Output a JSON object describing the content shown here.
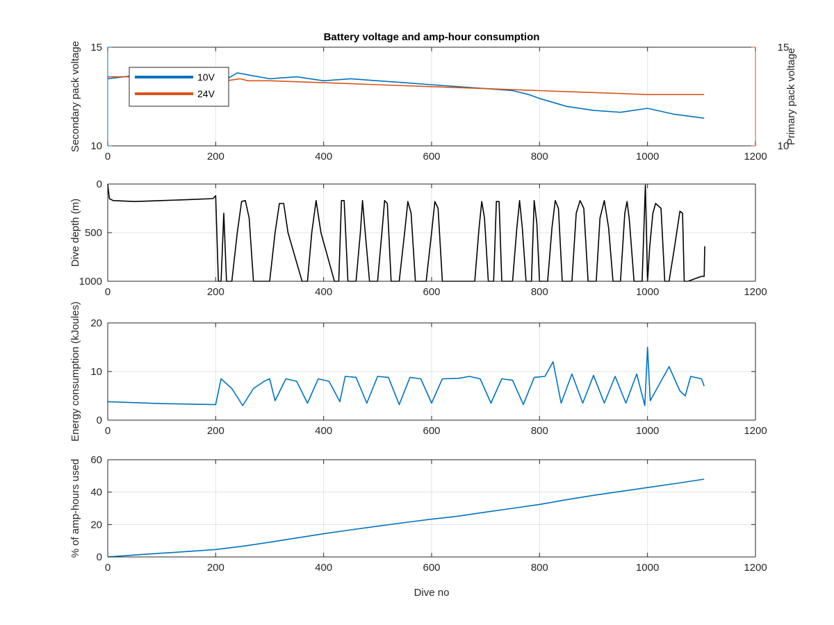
{
  "chart_data": [
    {
      "type": "line",
      "title": "Battery voltage and amp-hour consumption",
      "xlim": [
        0,
        1200
      ],
      "xticks": [
        0,
        200,
        400,
        600,
        800,
        1000,
        1200
      ],
      "ylim": [
        10,
        15
      ],
      "yticks": [
        10,
        15
      ],
      "ylabel": "Secondary pack voltage",
      "y2lim": [
        10,
        15
      ],
      "y2ticks": [
        10,
        15
      ],
      "y2label": "Primary pack voltage",
      "grid": true,
      "legend_position": "top-left",
      "colors": {
        "left_axis": "#0072BD",
        "right_axis": "#D95319"
      },
      "series": [
        {
          "name": "10V",
          "color": "#0072BD",
          "axis": "left",
          "x": [
            0,
            30,
            60,
            100,
            150,
            200,
            215,
            240,
            260,
            300,
            350,
            400,
            450,
            500,
            550,
            600,
            650,
            700,
            750,
            780,
            800,
            850,
            900,
            950,
            1000,
            1050,
            1105
          ],
          "y": [
            13.4,
            13.5,
            13.6,
            13.5,
            13.5,
            13.4,
            13.3,
            13.7,
            13.6,
            13.4,
            13.5,
            13.3,
            13.4,
            13.3,
            13.2,
            13.1,
            13.0,
            12.9,
            12.8,
            12.6,
            12.4,
            12.0,
            11.8,
            11.7,
            11.9,
            11.6,
            11.4
          ]
        },
        {
          "name": "24V",
          "color": "#D95319",
          "axis": "right",
          "x": [
            0,
            50,
            100,
            150,
            200,
            220,
            245,
            260,
            300,
            400,
            500,
            600,
            650,
            700,
            750,
            800,
            850,
            900,
            950,
            1000,
            1050,
            1105
          ],
          "y": [
            13.5,
            13.5,
            13.5,
            13.5,
            13.4,
            13.3,
            13.4,
            13.3,
            13.3,
            13.2,
            13.1,
            13.0,
            12.95,
            12.9,
            12.85,
            12.8,
            12.75,
            12.7,
            12.65,
            12.6,
            12.6,
            12.6
          ]
        }
      ]
    },
    {
      "type": "line",
      "xlim": [
        0,
        1200
      ],
      "xticks": [
        0,
        200,
        400,
        600,
        800,
        1000,
        1200
      ],
      "ylim": [
        0,
        1000
      ],
      "yticks": [
        0,
        500,
        1000
      ],
      "y_reversed": true,
      "ylabel": "Dive depth (m)",
      "grid": true,
      "series": [
        {
          "color": "#000000",
          "x": [
            0,
            3,
            10,
            50,
            100,
            150,
            195,
            200,
            205,
            210,
            215,
            220,
            230,
            240,
            248,
            255,
            262,
            270,
            300,
            310,
            318,
            326,
            334,
            360,
            370,
            378,
            386,
            395,
            420,
            428,
            433,
            438,
            445,
            460,
            468,
            472,
            477,
            485,
            500,
            508,
            513,
            518,
            525,
            540,
            550,
            556,
            562,
            570,
            590,
            600,
            606,
            612,
            620,
            680,
            688,
            693,
            698,
            705,
            715,
            720,
            725,
            730,
            740,
            750,
            758,
            763,
            768,
            775,
            785,
            790,
            795,
            800,
            815,
            823,
            829,
            835,
            842,
            860,
            868,
            875,
            882,
            890,
            905,
            912,
            920,
            928,
            936,
            950,
            958,
            962,
            966,
            975,
            990,
            996,
            1000,
            1004,
            1010,
            1015,
            1025,
            1032,
            1040,
            1050,
            1060,
            1065,
            1068,
            1071,
            1075,
            1095,
            1100,
            1105,
            1106
          ],
          "y": [
            0,
            150,
            170,
            180,
            170,
            160,
            150,
            120,
            1000,
            1000,
            300,
            1000,
            1000,
            500,
            180,
            170,
            350,
            1000,
            1000,
            500,
            200,
            200,
            500,
            1000,
            1000,
            500,
            170,
            500,
            1000,
            1000,
            170,
            170,
            1000,
            1000,
            500,
            170,
            500,
            1000,
            1000,
            500,
            170,
            200,
            1000,
            1000,
            500,
            180,
            300,
            1000,
            1000,
            500,
            180,
            250,
            1000,
            1000,
            450,
            180,
            350,
            1000,
            1000,
            180,
            180,
            1000,
            1000,
            1000,
            450,
            170,
            450,
            1000,
            1000,
            170,
            400,
            1000,
            1000,
            450,
            170,
            250,
            1000,
            1000,
            300,
            170,
            250,
            1000,
            1000,
            350,
            170,
            450,
            1000,
            1000,
            300,
            180,
            350,
            1000,
            1000,
            10,
            1000,
            650,
            300,
            200,
            250,
            1000,
            1000,
            650,
            280,
            300,
            1000,
            1000,
            1000,
            960,
            950,
            950,
            640
          ]
        }
      ]
    },
    {
      "type": "line",
      "xlim": [
        0,
        1200
      ],
      "xticks": [
        0,
        200,
        400,
        600,
        800,
        1000,
        1200
      ],
      "ylim": [
        0,
        20
      ],
      "yticks": [
        0,
        10,
        20
      ],
      "ylabel": "Energy consumption (kJoules)",
      "grid": true,
      "series": [
        {
          "color": "#0072BD",
          "x": [
            0,
            50,
            100,
            150,
            200,
            210,
            230,
            250,
            270,
            290,
            300,
            310,
            330,
            350,
            370,
            390,
            410,
            430,
            440,
            460,
            480,
            500,
            520,
            540,
            560,
            580,
            600,
            620,
            650,
            670,
            690,
            710,
            730,
            750,
            770,
            790,
            810,
            825,
            840,
            860,
            880,
            900,
            920,
            940,
            960,
            980,
            995,
            1000,
            1005,
            1020,
            1040,
            1060,
            1070,
            1080,
            1100,
            1105
          ],
          "y": [
            3.8,
            3.6,
            3.4,
            3.3,
            3.2,
            8.5,
            6.5,
            3.0,
            6.5,
            8.0,
            8.5,
            4.0,
            8.5,
            8.0,
            3.5,
            8.5,
            8.0,
            3.8,
            9.0,
            8.8,
            3.5,
            9.0,
            8.8,
            3.2,
            8.8,
            8.5,
            3.5,
            8.5,
            8.6,
            9.0,
            8.5,
            3.5,
            8.5,
            8.2,
            3.2,
            8.8,
            9.0,
            12.0,
            3.5,
            9.5,
            3.5,
            9.2,
            3.5,
            9.0,
            3.5,
            9.5,
            3.0,
            15.0,
            4.0,
            7.0,
            11.0,
            6.0,
            5.0,
            9.0,
            8.5,
            7.0
          ]
        }
      ]
    },
    {
      "type": "line",
      "xlim": [
        0,
        1200
      ],
      "xticks": [
        0,
        200,
        400,
        600,
        800,
        1000,
        1200
      ],
      "ylim": [
        0,
        60
      ],
      "yticks": [
        0,
        20,
        40,
        60
      ],
      "xlabel": "Dive no",
      "ylabel": "% of amp-hours used",
      "grid": true,
      "series": [
        {
          "color": "#0072BD",
          "x": [
            0,
            50,
            100,
            150,
            200,
            250,
            300,
            350,
            400,
            450,
            500,
            550,
            600,
            650,
            700,
            750,
            800,
            850,
            900,
            950,
            1000,
            1050,
            1105
          ],
          "y": [
            0,
            1.2,
            2.3,
            3.4,
            4.6,
            6.6,
            9.1,
            11.7,
            14.3,
            16.7,
            19.0,
            21.2,
            23.3,
            25.2,
            27.7,
            30.0,
            32.4,
            35.3,
            38.0,
            40.4,
            42.8,
            45.2,
            48.0
          ]
        }
      ]
    }
  ]
}
